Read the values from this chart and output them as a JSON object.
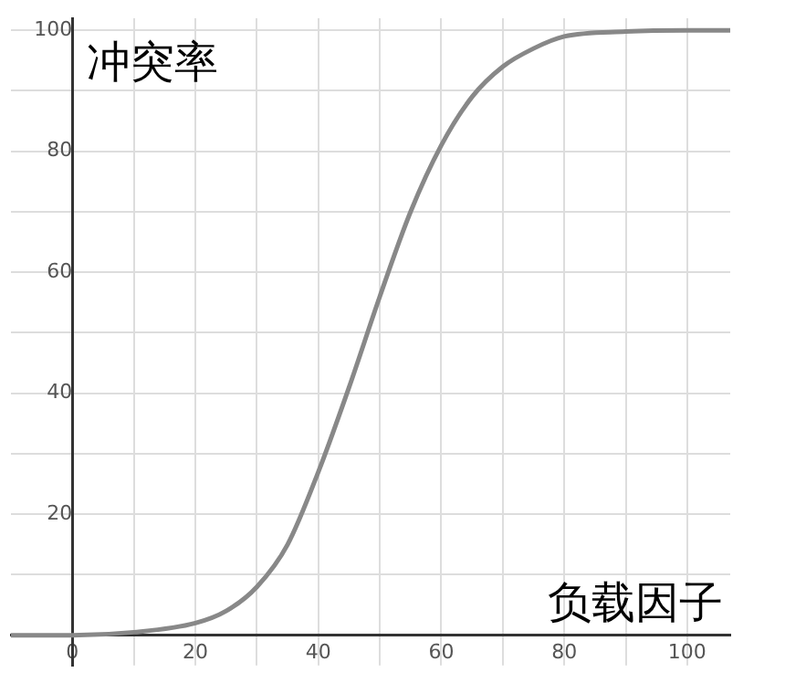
{
  "chart_data": {
    "type": "line",
    "xlabel": "负载因子",
    "ylabel": "冲突率",
    "series": [
      {
        "color": "#888888",
        "x": [
          -10,
          0,
          10,
          20,
          25,
          30,
          35,
          40,
          45,
          50,
          55,
          60,
          65,
          70,
          75,
          80,
          90,
          100,
          107
        ],
        "values": [
          0,
          0,
          0.5,
          2,
          4,
          8,
          15,
          27,
          41,
          56,
          70,
          81,
          89,
          94,
          97,
          99,
          99.8,
          100,
          100
        ]
      }
    ],
    "xlim": [
      -10,
      107
    ],
    "ylim": [
      -5,
      102
    ],
    "xticks": [
      0,
      {
        "value": 10,
        "label": null
      },
      20,
      {
        "value": 30,
        "label": null
      },
      40,
      {
        "value": 50,
        "label": null
      },
      60,
      {
        "value": 70,
        "label": null
      },
      80,
      {
        "value": 90,
        "label": null
      },
      100
    ],
    "yticks": [
      {
        "value": 10,
        "label": null
      },
      20,
      {
        "value": 30,
        "label": null
      },
      40,
      {
        "value": 50,
        "label": null
      },
      60,
      {
        "value": 70,
        "label": null
      },
      80,
      {
        "value": 90,
        "label": null
      },
      100
    ],
    "grid": true,
    "marker": "none",
    "line_style": "solid",
    "legend": false
  }
}
